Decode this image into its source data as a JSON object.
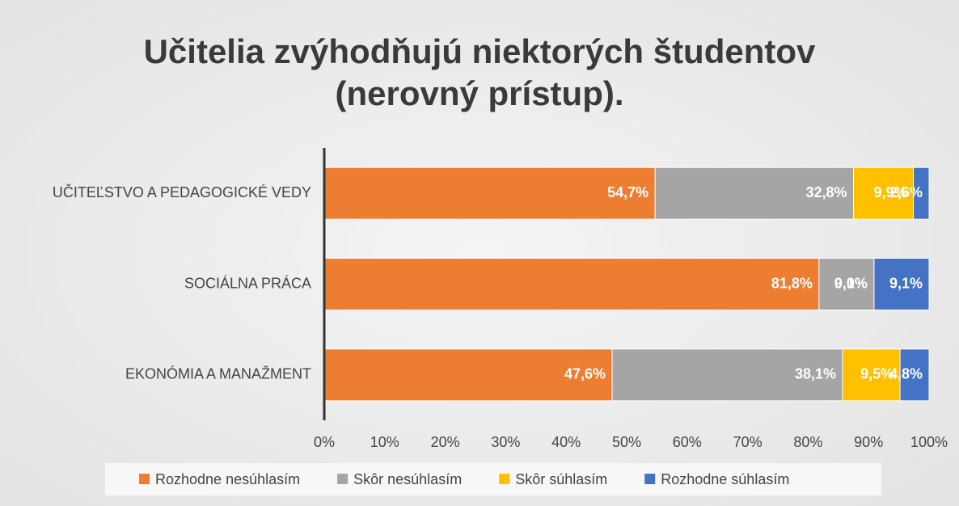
{
  "chart_data": {
    "type": "stacked-bar-horizontal",
    "title": "Učitelia zvýhodňujú niektorých študentov (nerovný prístup).",
    "categories": [
      "UČITEĽSTVO A PEDAGOGICKÉ VEDY",
      "SOCIÁLNA PRÁCA",
      "EKONÓMIA A MANAŽMENT"
    ],
    "series": [
      {
        "name": "Rozhodne nesúhlasím",
        "color": "#ed7d31",
        "values": [
          54.7,
          81.8,
          47.6
        ],
        "value_labels": [
          "54,7%",
          "81,8%",
          "47,6%"
        ]
      },
      {
        "name": "Skôr nesúhlasím",
        "color": "#a5a5a5",
        "values": [
          32.8,
          9.1,
          38.1
        ],
        "value_labels": [
          "32,8%",
          "9,1%",
          "38,1%"
        ]
      },
      {
        "name": "Skôr súhlasím",
        "color": "#ffc000",
        "values": [
          9.9,
          0.0,
          9.5
        ],
        "value_labels": [
          "9,9%",
          "0,0%",
          "9,5%"
        ]
      },
      {
        "name": "Rozhodne súhlasím",
        "color": "#4472c4",
        "values": [
          2.6,
          9.1,
          4.8
        ],
        "value_labels": [
          "2,6%",
          "9,1%",
          "4,8%"
        ]
      }
    ],
    "xlim": [
      0,
      100
    ],
    "xticks": [
      {
        "value": 0,
        "label": "0%"
      },
      {
        "value": 10,
        "label": "10%"
      },
      {
        "value": 20,
        "label": "20%"
      },
      {
        "value": 30,
        "label": "30%"
      },
      {
        "value": 40,
        "label": "40%"
      },
      {
        "value": 50,
        "label": "50%"
      },
      {
        "value": 60,
        "label": "60%"
      },
      {
        "value": 70,
        "label": "70%"
      },
      {
        "value": 80,
        "label": "80%"
      },
      {
        "value": 90,
        "label": "90%"
      },
      {
        "value": 100,
        "label": "100%"
      }
    ],
    "legend": "bottom"
  }
}
